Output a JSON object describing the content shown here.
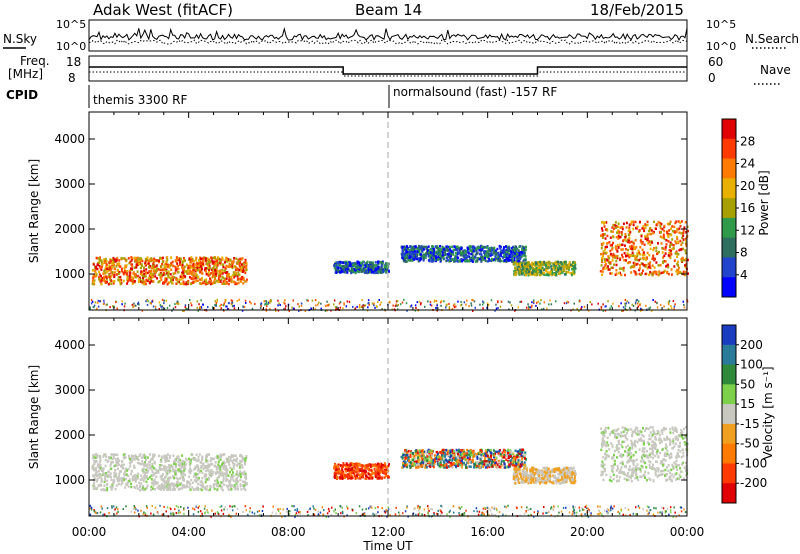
{
  "header": {
    "station": "Adak West (fitACF)",
    "beam": "Beam 14",
    "date": "18/Feb/2015"
  },
  "top_panels": {
    "nsky_label": "N.Sky",
    "nsearch_label": "N.Search",
    "noise_ticks_left": [
      "10^5",
      "10^0"
    ],
    "noise_ticks_right": [
      "10^5",
      "10^0"
    ],
    "freq_label": "Freq.",
    "freq_unit": "[MHz]",
    "freq_ticks": [
      "18",
      "8"
    ],
    "nave_label": "Nave",
    "nave_ticks": [
      "60",
      "0"
    ],
    "cpid_label": "CPID",
    "cpid_segments": [
      "themis 3300 RF",
      "normalsound (fast) -157 RF"
    ]
  },
  "chart_data": [
    {
      "type": "heatmap",
      "name": "power-panel",
      "ylabel": "Slant Range [km]",
      "xlabel": "Time UT",
      "x_ticks": [
        "00:00",
        "04:00",
        "08:00",
        "12:00",
        "16:00",
        "20:00",
        "00:00"
      ],
      "xlim_hours": [
        0,
        24
      ],
      "y_ticks": [
        1000,
        2000,
        3000,
        4000
      ],
      "ylim": [
        200,
        4600
      ],
      "colorbar": {
        "label": "Power [dB]",
        "ticks": [
          4,
          8,
          12,
          16,
          20,
          24,
          28
        ],
        "range": [
          0,
          32
        ],
        "colors": [
          "#0000ff",
          "#2244cc",
          "#2e6e5e",
          "#2f9a4a",
          "#a6a000",
          "#e8b000",
          "#ff7a00",
          "#ff3a00",
          "#e00000"
        ]
      },
      "regions": [
        {
          "t": [
            0.1,
            6.3
          ],
          "r": [
            800,
            1400
          ],
          "level": "high"
        },
        {
          "t": [
            9.8,
            12.0
          ],
          "r": [
            1050,
            1300
          ],
          "level": "low"
        },
        {
          "t": [
            12.5,
            17.5
          ],
          "r": [
            1300,
            1650
          ],
          "level": "low"
        },
        {
          "t": [
            17.0,
            19.5
          ],
          "r": [
            1000,
            1300
          ],
          "level": "mid"
        },
        {
          "t": [
            20.5,
            24.0
          ],
          "r": [
            1000,
            2200
          ],
          "level": "high"
        }
      ]
    },
    {
      "type": "heatmap",
      "name": "velocity-panel",
      "ylabel": "Slant Range [km]",
      "xlabel": "Time UT",
      "x_ticks": [
        "00:00",
        "04:00",
        "08:00",
        "12:00",
        "16:00",
        "20:00",
        "00:00"
      ],
      "xlim_hours": [
        0,
        24
      ],
      "y_ticks": [
        1000,
        2000,
        3000,
        4000
      ],
      "ylim": [
        200,
        4600
      ],
      "colorbar": {
        "label": "Velocity [m s⁻¹]",
        "ticks": [
          "200",
          "100",
          "50",
          "15",
          "-15",
          "-50",
          "-100",
          "-200"
        ],
        "colors": [
          "#1a3cc0",
          "#2a7a9a",
          "#2e8a3a",
          "#7cd04a",
          "#c8c8c0",
          "#f0a020",
          "#ff7a00",
          "#ff3a00",
          "#e00000"
        ]
      },
      "regions": [
        {
          "t": [
            0.1,
            6.3
          ],
          "r": [
            800,
            1600
          ],
          "level": "ground"
        },
        {
          "t": [
            9.8,
            12.0
          ],
          "r": [
            1050,
            1400
          ],
          "level": "away"
        },
        {
          "t": [
            12.5,
            17.5
          ],
          "r": [
            1300,
            1700
          ],
          "level": "mixed"
        },
        {
          "t": [
            17.0,
            19.5
          ],
          "r": [
            950,
            1300
          ],
          "level": "neutral"
        },
        {
          "t": [
            20.5,
            24.0
          ],
          "r": [
            1000,
            2200
          ],
          "level": "ground"
        }
      ]
    }
  ]
}
